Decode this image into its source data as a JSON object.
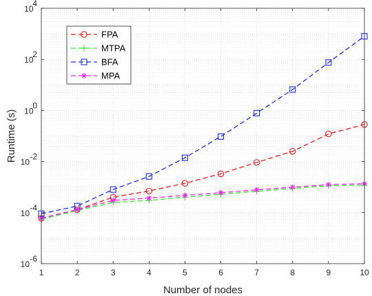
{
  "chart_data": {
    "type": "line",
    "xlabel": "Number of nodes",
    "ylabel": "Runtime (s)",
    "x": [
      1,
      2,
      3,
      4,
      5,
      6,
      7,
      8,
      9,
      10
    ],
    "xlim": [
      1,
      10
    ],
    "ylim": [
      1e-06,
      10000
    ],
    "yscale": "log",
    "xticks": [
      "1",
      "2",
      "3",
      "4",
      "5",
      "6",
      "7",
      "8",
      "9",
      "10"
    ],
    "yticks": [
      {
        "base": "10",
        "exp": "-6",
        "value": 1e-06
      },
      {
        "base": "10",
        "exp": "-4",
        "value": 0.0001
      },
      {
        "base": "10",
        "exp": "-2",
        "value": 0.01
      },
      {
        "base": "10",
        "exp": "0",
        "value": 1
      },
      {
        "base": "10",
        "exp": "2",
        "value": 100
      },
      {
        "base": "10",
        "exp": "4",
        "value": 10000
      }
    ],
    "grid": true,
    "legend_position": "top-left",
    "series": [
      {
        "name": "FPA",
        "color": "#e8191c",
        "marker": "circle",
        "values": [
          6e-05,
          0.00013,
          0.0004,
          0.0007,
          0.0014,
          0.0033,
          0.0092,
          0.025,
          0.12,
          0.28
        ]
      },
      {
        "name": "MTPA",
        "color": "#33e633",
        "marker": "plus",
        "values": [
          5.5e-05,
          0.00012,
          0.00025,
          0.0003,
          0.0004,
          0.00052,
          0.00068,
          0.00088,
          0.00112,
          0.0012
        ]
      },
      {
        "name": "BFA",
        "color": "#1a2ee6",
        "marker": "square",
        "values": [
          9e-05,
          0.00018,
          0.0008,
          0.0026,
          0.014,
          0.095,
          0.78,
          6.6,
          75,
          800
        ]
      },
      {
        "name": "MPA",
        "color": "#ee22ee",
        "marker": "asterisk",
        "values": [
          6e-05,
          0.00013,
          0.0003,
          0.00037,
          0.00047,
          0.0006,
          0.00078,
          0.00098,
          0.00125,
          0.00135
        ]
      }
    ]
  }
}
